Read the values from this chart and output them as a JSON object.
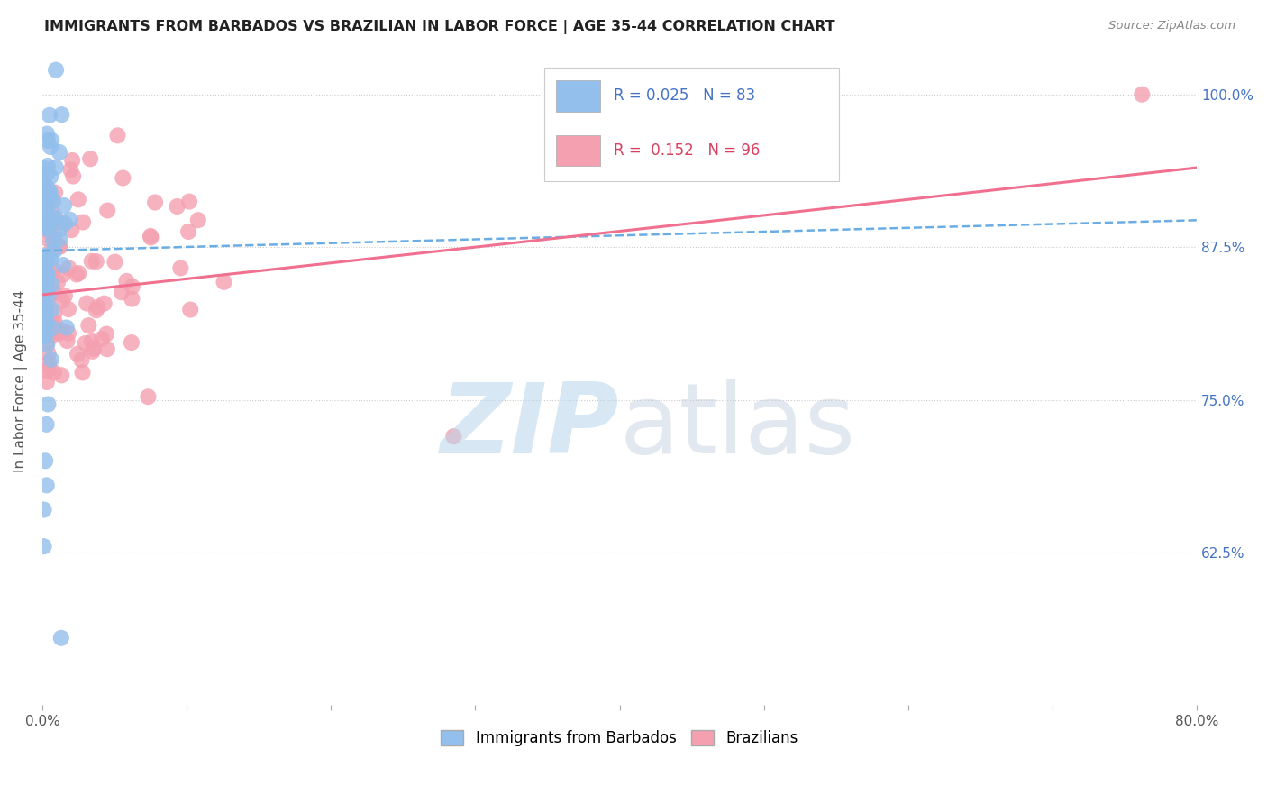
{
  "title": "IMMIGRANTS FROM BARBADOS VS BRAZILIAN IN LABOR FORCE | AGE 35-44 CORRELATION CHART",
  "source": "Source: ZipAtlas.com",
  "ylabel": "In Labor Force | Age 35-44",
  "xlim": [
    0.0,
    0.8
  ],
  "ylim_low": 0.5,
  "ylim_high": 1.03,
  "xtick_positions": [
    0.0,
    0.1,
    0.2,
    0.3,
    0.4,
    0.5,
    0.6,
    0.7,
    0.8
  ],
  "xticklabels": [
    "0.0%",
    "",
    "",
    "",
    "",
    "",
    "",
    "",
    "80.0%"
  ],
  "ytick_positions": [
    0.625,
    0.75,
    0.875,
    1.0
  ],
  "yticklabels": [
    "62.5%",
    "75.0%",
    "87.5%",
    "100.0%"
  ],
  "barbados_R": 0.025,
  "barbados_N": 83,
  "brazilian_R": 0.152,
  "brazilian_N": 96,
  "barbados_color": "#92BFEC",
  "brazilian_color": "#F4A0B0",
  "trend_blue_color": "#6AADE4",
  "trend_pink_color": "#F07090",
  "bottom_legend_blue": "Immigrants from Barbados",
  "bottom_legend_pink": "Brazilians",
  "barbados_trend": [
    0.0,
    0.8,
    0.872,
    0.897
  ],
  "brazilian_trend": [
    0.0,
    0.8,
    0.836,
    0.94
  ],
  "seed_bar": 7,
  "seed_bra": 13
}
